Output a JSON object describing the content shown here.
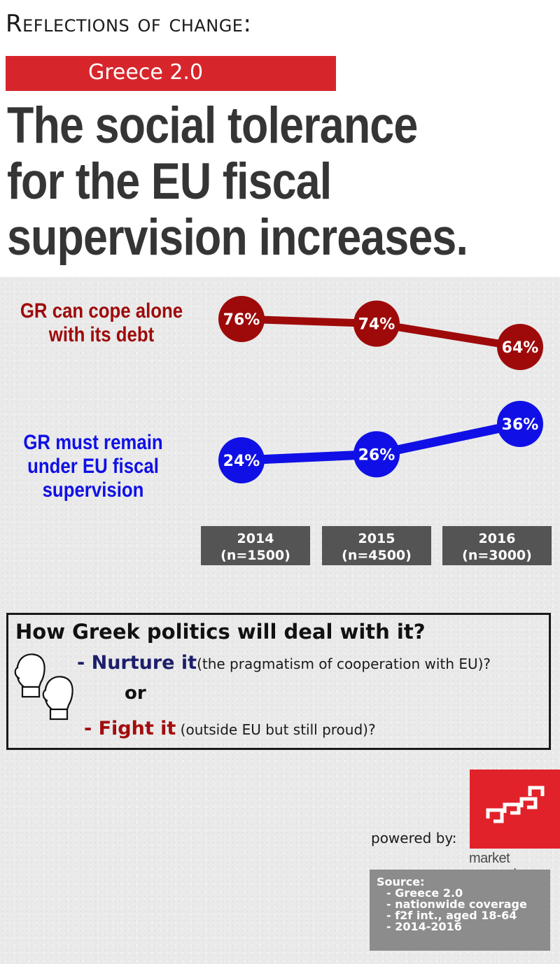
{
  "header": {
    "kicker": "Reflections of change:",
    "badge": "Greece 2.0",
    "headline": [
      "The social tolerance",
      "for the EU fiscal",
      "supervision increases."
    ]
  },
  "colors": {
    "red_series": "#9e0a0a",
    "blue_series": "#1010e6",
    "brand": "#d7262b",
    "year_box": "#545454"
  },
  "chart_data": {
    "type": "line",
    "categories": [
      "2014",
      "2015",
      "2016"
    ],
    "category_labels": [
      {
        "year": "2014",
        "sample": "(n=1500)"
      },
      {
        "year": "2015",
        "sample": "(n=4500)"
      },
      {
        "year": "2016",
        "sample": "(n=3000)"
      }
    ],
    "series": [
      {
        "name": "GR can cope alone with its debt",
        "name_lines": [
          "GR can cope alone",
          "with its debt"
        ],
        "values": [
          76,
          74,
          64
        ],
        "labels": [
          "76%",
          "74%",
          "64%"
        ],
        "color": "#9e0a0a"
      },
      {
        "name": "GR must remain under EU fiscal supervision",
        "name_lines": [
          "GR must remain",
          "under EU fiscal",
          "supervision"
        ],
        "values": [
          24,
          26,
          36
        ],
        "labels": [
          "24%",
          "26%",
          "36%"
        ],
        "color": "#1010e6"
      }
    ],
    "unit": "%",
    "legend": "left"
  },
  "question": {
    "title": "How Greek politics will deal with it?",
    "option1_key": "- Nurture it",
    "option1_note": "(the pragmatism of cooperation with EU)?",
    "or": "or",
    "option2_key": "- Fight it",
    "option2_note": " (outside EU but still proud)?",
    "icon": "boxing-gloves-icon"
  },
  "footer": {
    "powered": "powered by:",
    "logo_text": "market research",
    "logo_icon": "gpo-logo-icon",
    "source_title": "Source:",
    "source_lines": [
      "- Greece 2.0",
      "- nationwide coverage",
      "- f2f int., aged 18-64",
      "- 2014-2016"
    ]
  }
}
